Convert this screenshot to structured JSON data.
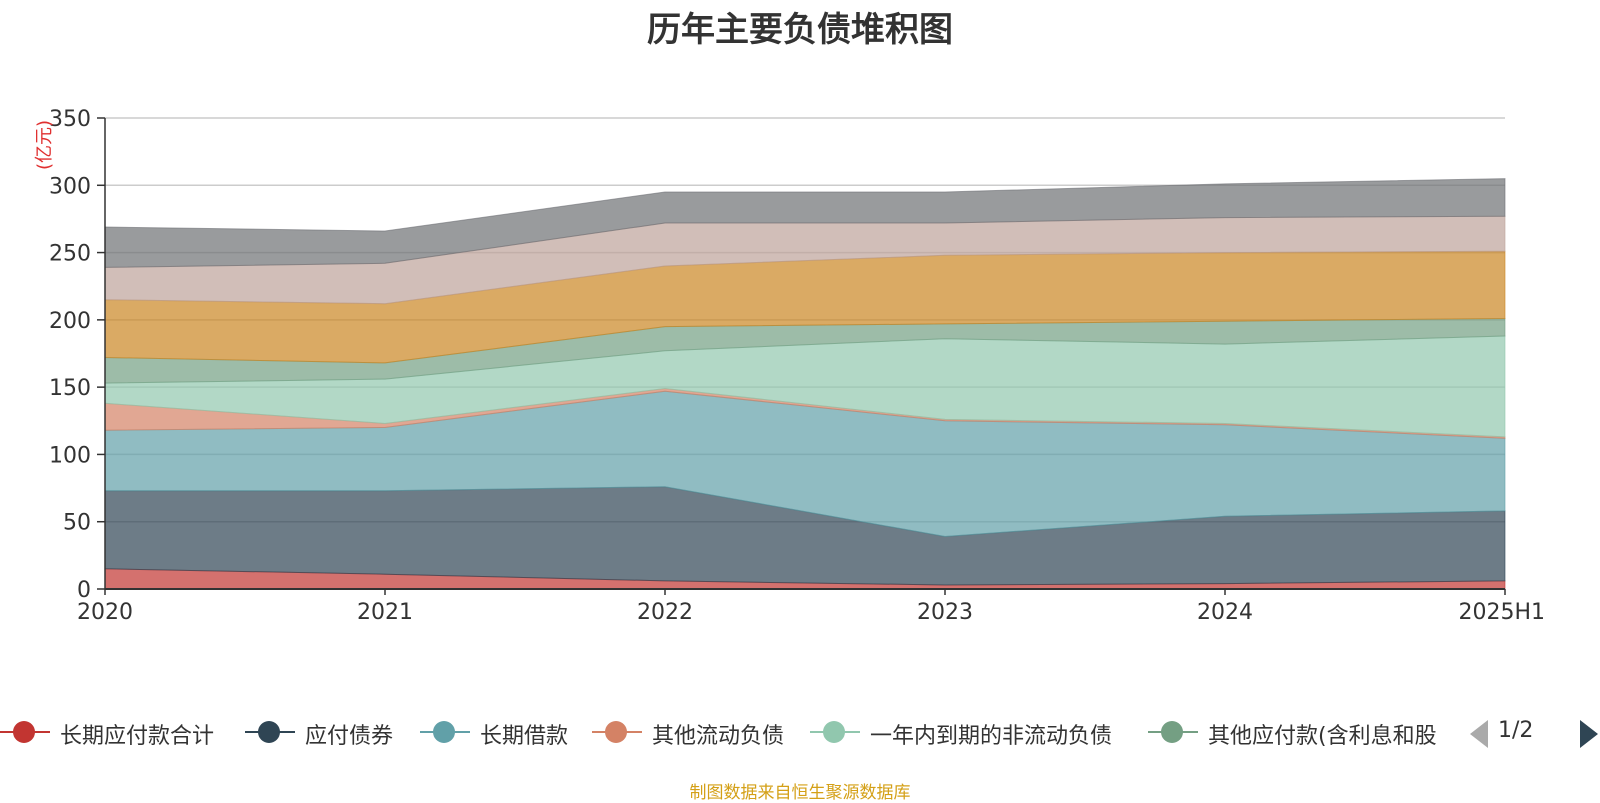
{
  "chart_data": {
    "type": "area",
    "stacked": true,
    "title": "历年主要负债堆积图",
    "unit_label": "(亿元)",
    "categories": [
      "2020",
      "2021",
      "2022",
      "2023",
      "2024",
      "2025H1"
    ],
    "ylim": [
      0,
      350
    ],
    "yticks": [
      0,
      50,
      100,
      150,
      200,
      250,
      300,
      350
    ],
    "grid": true,
    "legend_position": "bottom",
    "series": [
      {
        "name": "长期应付款合计",
        "color": "#c23531",
        "values": [
          15,
          11,
          6,
          3,
          4,
          6
        ]
      },
      {
        "name": "应付债券",
        "color": "#2f4554",
        "values": [
          58,
          62,
          70,
          36,
          50,
          52
        ]
      },
      {
        "name": "长期借款",
        "color": "#61a0a8",
        "values": [
          45,
          47,
          71,
          86,
          68,
          54
        ]
      },
      {
        "name": "其他流动负债",
        "color": "#d48265",
        "values": [
          20,
          3,
          2,
          1,
          1,
          1
        ]
      },
      {
        "name": "一年内到期的非流动负债",
        "color": "#91c7ae",
        "values": [
          15,
          33,
          28,
          60,
          59,
          75
        ]
      },
      {
        "name": "其他应付款(含利息和股",
        "color": "#749f83",
        "values": [
          19,
          12,
          18,
          11,
          17,
          13
        ]
      },
      {
        "name": "",
        "color": "#ca8622",
        "values": [
          43,
          44,
          45,
          51,
          51,
          50
        ]
      },
      {
        "name": "",
        "color": "#bda29a",
        "values": [
          24,
          30,
          32,
          24,
          26,
          26
        ]
      },
      {
        "name": "",
        "color": "#6e7074",
        "values": [
          30,
          24,
          23,
          23,
          25,
          28
        ]
      }
    ]
  },
  "legend": {
    "page": "1/2",
    "visible_count": 6
  },
  "source_note": "制图数据来自恒生聚源数据库"
}
